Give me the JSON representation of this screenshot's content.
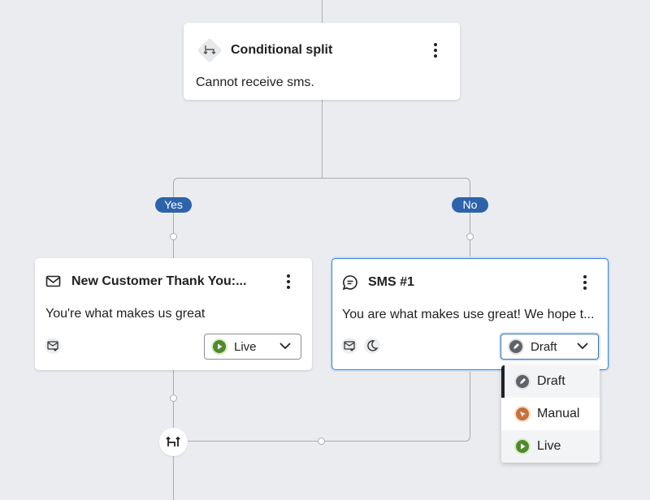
{
  "split_node": {
    "title": "Conditional split",
    "description": "Cannot receive sms.",
    "icon": "split-arrows-icon"
  },
  "branches": {
    "yes": "Yes",
    "no": "No"
  },
  "email_node": {
    "title": "New Customer Thank You:...",
    "description": "You're what makes us great",
    "status": "Live",
    "icon": "mail-icon"
  },
  "sms_node": {
    "title": "SMS #1",
    "description": "You are what makes use great! We hope t...",
    "status": "Draft",
    "icon": "message-icon"
  },
  "status_menu": {
    "items": [
      {
        "label": "Draft",
        "color": "#5f6368",
        "active": true
      },
      {
        "label": "Manual",
        "color": "#c8703a"
      },
      {
        "label": "Live",
        "color": "#4f8a2b"
      }
    ]
  },
  "colors": {
    "accent": "#2e63ab",
    "live": "#4f8a2b",
    "draft": "#5f6368",
    "manual": "#c8703a"
  }
}
